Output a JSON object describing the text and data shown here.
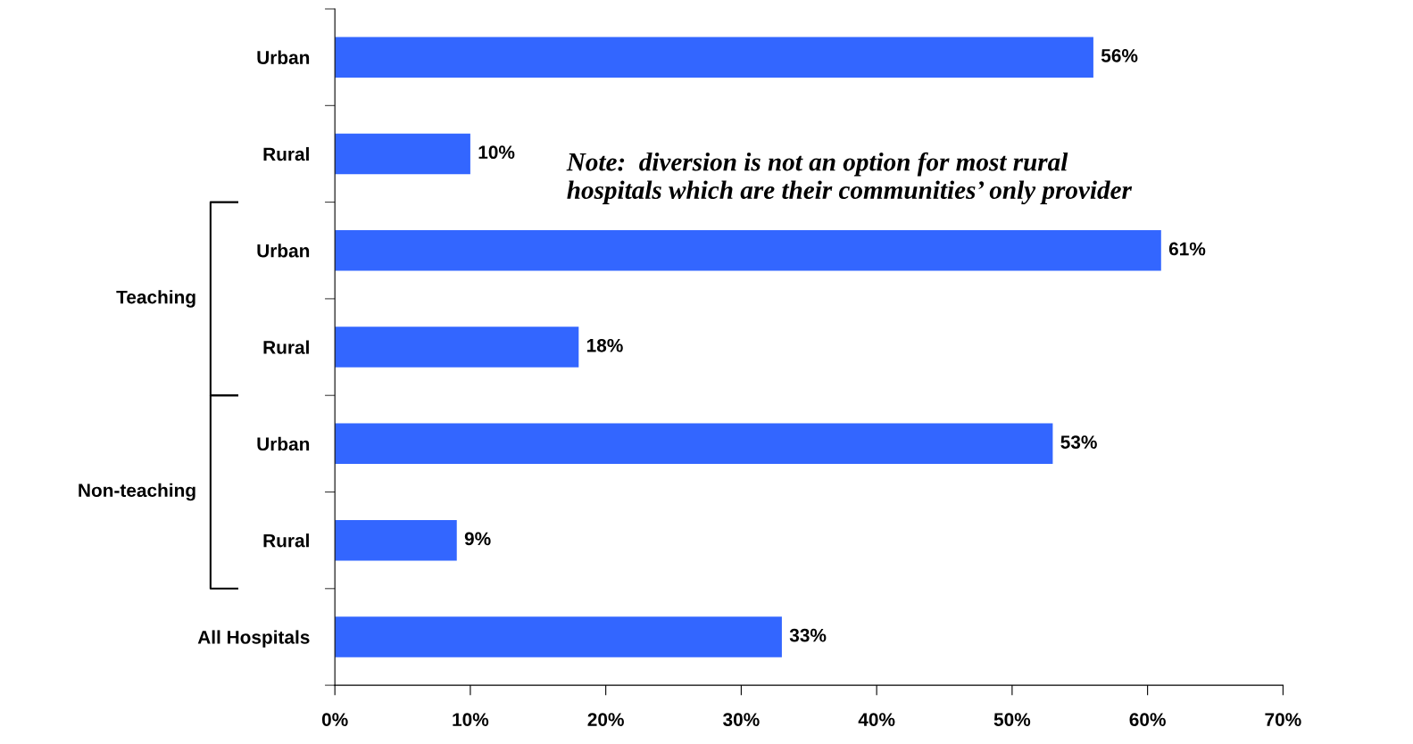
{
  "chart_data": {
    "type": "bar",
    "orientation": "horizontal",
    "categories": [
      "Urban",
      "Rural",
      "Urban",
      "Rural",
      "Urban",
      "Rural",
      "All Hospitals"
    ],
    "values": [
      56,
      10,
      61,
      18,
      53,
      9,
      33
    ],
    "value_labels": [
      "56%",
      "10%",
      "61%",
      "18%",
      "53%",
      "9%",
      "33%"
    ],
    "color": "#3366ff",
    "xlim": [
      0,
      70
    ],
    "xticks": [
      {
        "value": 0,
        "label": "0%"
      },
      {
        "value": 10,
        "label": "10%"
      },
      {
        "value": 20,
        "label": "20%"
      },
      {
        "value": 30,
        "label": "30%"
      },
      {
        "value": 40,
        "label": "40%"
      },
      {
        "value": 50,
        "label": "50%"
      },
      {
        "value": 60,
        "label": "60%"
      },
      {
        "value": 70,
        "label": "70%"
      }
    ],
    "grid": false,
    "legend": false,
    "annotations": [
      "Note:  diversion is not an option for most rural\nhospitals which are their communities’ only provider",
      "Teaching",
      "Non-teaching"
    ]
  }
}
